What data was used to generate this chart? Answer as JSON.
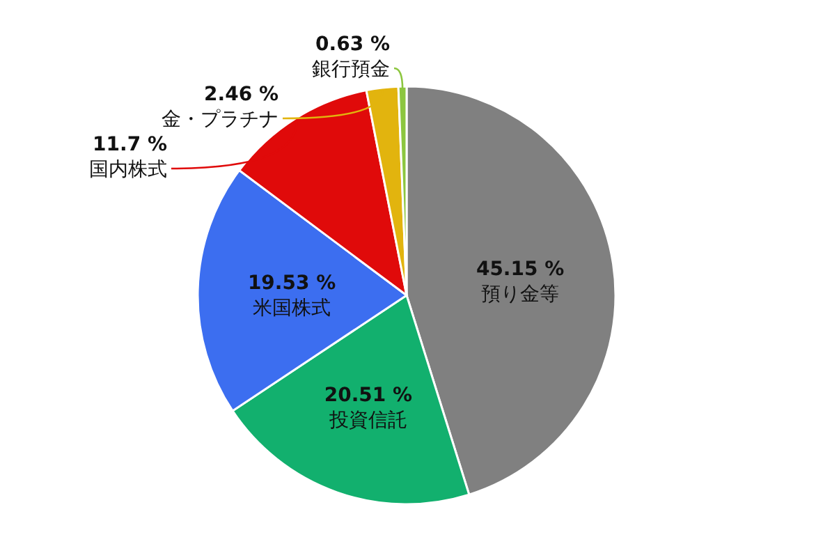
{
  "chart_data": {
    "type": "pie",
    "categories": [
      "預り金等",
      "投資信託",
      "米国株式",
      "国内株式",
      "金・プラチナ",
      "銀行預金"
    ],
    "values": [
      45.15,
      20.51,
      19.53,
      11.7,
      2.46,
      0.63
    ],
    "value_labels": [
      "45.15 %",
      "20.51 %",
      "19.53 %",
      "11.7 %",
      "2.46 %",
      "0.63 %"
    ],
    "colors": [
      "#808080",
      "#12b06e",
      "#3c6ef0",
      "#e00a0a",
      "#e2b40e",
      "#8cc63f"
    ],
    "legend": false
  }
}
